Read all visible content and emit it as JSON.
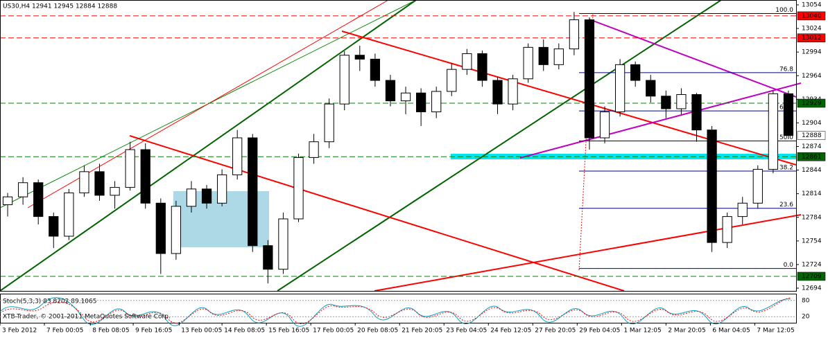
{
  "chart_data": {
    "type": "candlestick",
    "title": "US30,H4 12941 12945 12884 12888",
    "copyright": "XTB-Trader, © 2001-2011 MetaQuotes Software Corp.",
    "open": [
      12800,
      12810,
      12828,
      12785,
      12760,
      12815,
      12842,
      12812,
      12822,
      12870,
      12802,
      12738,
      12798,
      12820,
      12802,
      12838,
      12885,
      12748,
      12718,
      12782,
      12860,
      12880,
      12928,
      12990,
      12985,
      12958,
      12932,
      12942,
      12918,
      12944,
      12972,
      12992,
      12958,
      12928,
      12960,
      13000,
      12978,
      12998,
      13035,
      12885,
      12918,
      12978,
      12958,
      12938,
      12922,
      12940,
      12895,
      12752,
      12785,
      12802,
      12845,
      12941
    ],
    "high": [
      12815,
      12835,
      12832,
      12790,
      12820,
      12850,
      12852,
      12830,
      12880,
      12878,
      12808,
      12805,
      12830,
      12825,
      12845,
      12895,
      12890,
      12755,
      12790,
      12865,
      12890,
      12935,
      12995,
      13002,
      12992,
      12965,
      12950,
      12948,
      12950,
      12980,
      12998,
      12996,
      12962,
      12965,
      13005,
      13010,
      13005,
      13045,
      13038,
      12925,
      12985,
      12982,
      12965,
      12945,
      12948,
      12942,
      12900,
      12790,
      12810,
      12850,
      12945,
      12945
    ],
    "low": [
      12785,
      12800,
      12775,
      12745,
      12755,
      12810,
      12805,
      12795,
      12818,
      12795,
      12712,
      12730,
      12790,
      12795,
      12798,
      12832,
      12740,
      12700,
      12712,
      12778,
      12852,
      12872,
      12920,
      12970,
      12950,
      12925,
      12915,
      12900,
      12910,
      12938,
      12965,
      12950,
      12915,
      12920,
      12955,
      12970,
      12972,
      12990,
      12870,
      12878,
      12912,
      12950,
      12930,
      12910,
      12915,
      12880,
      12740,
      12745,
      12775,
      12795,
      12840,
      12884
    ],
    "close": [
      12810,
      12828,
      12785,
      12760,
      12815,
      12842,
      12812,
      12822,
      12870,
      12802,
      12738,
      12798,
      12820,
      12802,
      12838,
      12885,
      12748,
      12718,
      12782,
      12860,
      12880,
      12928,
      12990,
      12985,
      12958,
      12932,
      12942,
      12918,
      12944,
      12972,
      12992,
      12958,
      12928,
      12960,
      13000,
      12978,
      12998,
      13035,
      12885,
      12918,
      12978,
      12958,
      12938,
      12922,
      12940,
      12895,
      12752,
      12785,
      12802,
      12845,
      12941,
      12888
    ],
    "xlim": [
      0,
      52
    ],
    "xticks": [
      {
        "value": 0,
        "label": "3 Feb 2012"
      },
      {
        "value": 2.9,
        "label": "7 Feb 00:05"
      },
      {
        "value": 5.9,
        "label": "8 Feb 08:05"
      },
      {
        "value": 8.7,
        "label": "9 Feb 16:05"
      },
      {
        "value": 11.7,
        "label": "13 Feb 00:05"
      },
      {
        "value": 14.5,
        "label": "14 Feb 08:05"
      },
      {
        "value": 17.4,
        "label": "15 Feb 16:05"
      },
      {
        "value": 20.3,
        "label": "17 Feb 00:05"
      },
      {
        "value": 23.2,
        "label": "20 Feb 08:05"
      },
      {
        "value": 26.1,
        "label": "21 Feb 20:05"
      },
      {
        "value": 29.0,
        "label": "23 Feb 04:05"
      },
      {
        "value": 31.9,
        "label": "24 Feb 12:05"
      },
      {
        "value": 34.8,
        "label": "27 Feb 20:05"
      },
      {
        "value": 37.7,
        "label": "29 Feb 04:05"
      },
      {
        "value": 40.6,
        "label": "1 Mar 12:05"
      },
      {
        "value": 43.5,
        "label": "2 Mar 20:05"
      },
      {
        "value": 46.4,
        "label": "6 Mar 04:05"
      },
      {
        "value": 49.3,
        "label": "7 Mar 12:05"
      }
    ],
    "ylim": [
      12694,
      13054
    ],
    "yticks": [
      12694,
      12724,
      12754,
      12784,
      12814,
      12844,
      12874,
      12904,
      12934,
      12964,
      12994,
      13024,
      13054
    ],
    "levels": [
      {
        "value": 13040,
        "color": "#ff0000"
      },
      {
        "value": 13012,
        "color": "#ff0000"
      },
      {
        "value": 12929,
        "color": "#006400"
      },
      {
        "value": 12888,
        "color": "#ffffff"
      },
      {
        "value": 12861,
        "color": "#006400"
      },
      {
        "value": 12709,
        "color": "#006400"
      }
    ],
    "fib": {
      "high": 13043,
      "low": 12719,
      "levels": [
        {
          "value": 100,
          "label": "100.0"
        },
        {
          "value": 76.8,
          "label": "76.8"
        },
        {
          "value": 61.8,
          "label": "61.8"
        },
        {
          "value": 50,
          "label": "50.0"
        },
        {
          "value": 38.2,
          "label": "38.2"
        },
        {
          "value": 23.6,
          "label": "23.6"
        },
        {
          "value": 0,
          "label": "0.0"
        }
      ]
    },
    "stoch": {
      "label": "Stoch(5,3,3) 83.8202 89.1065",
      "ylim": [
        0,
        100
      ],
      "yticks": [
        20,
        80
      ]
    }
  }
}
